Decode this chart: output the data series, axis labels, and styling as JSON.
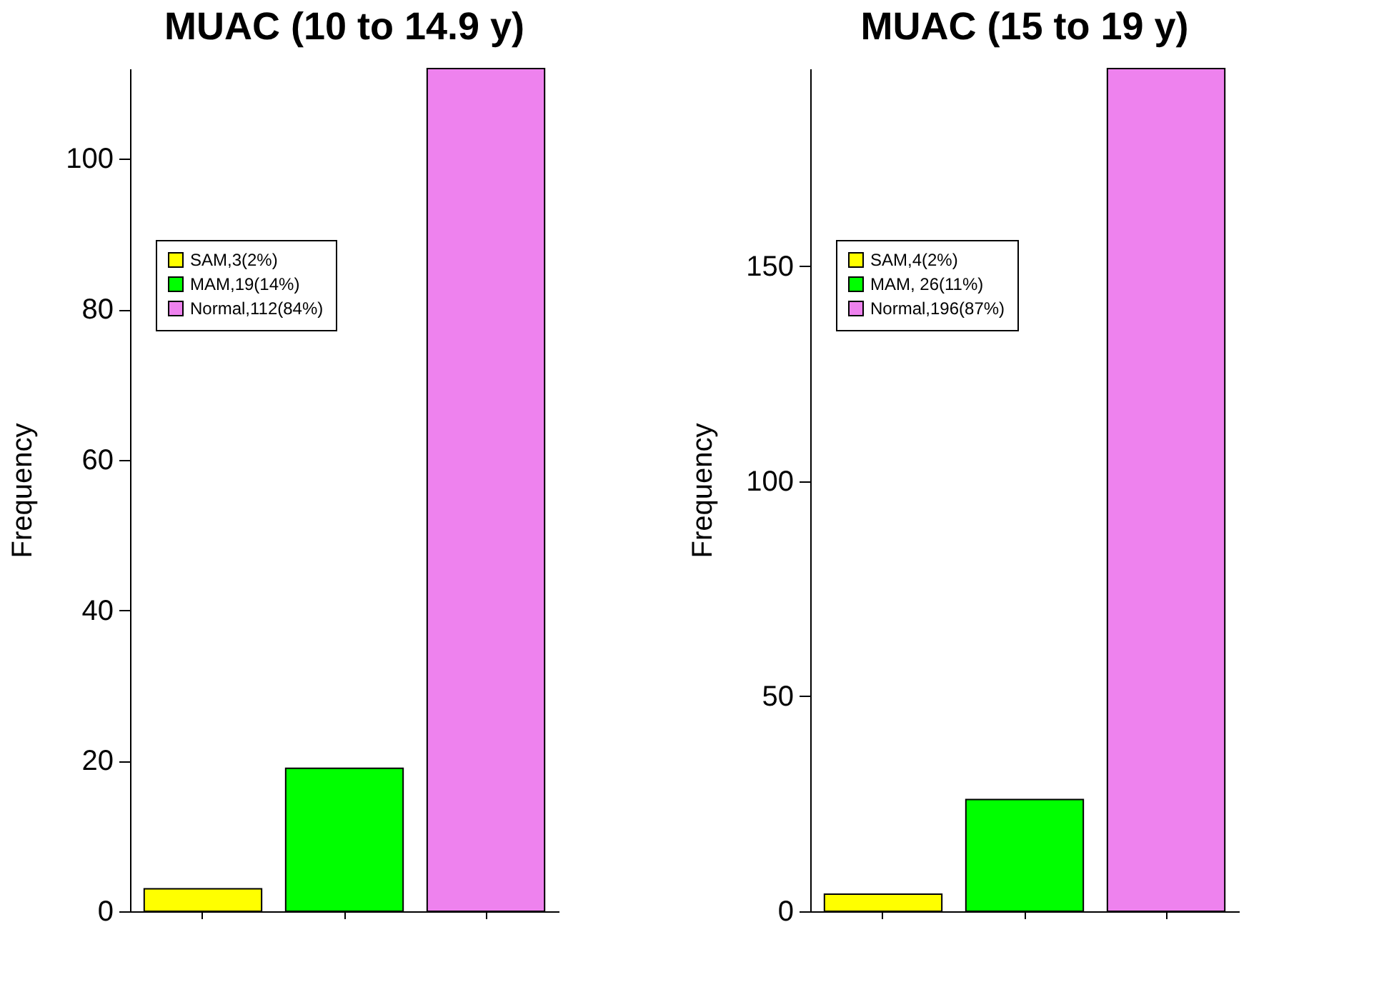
{
  "chart_data": [
    {
      "type": "bar",
      "title": "MUAC (10 to 14.9 y)",
      "ylabel": "Frequency",
      "categories": [
        null,
        null,
        null
      ],
      "stacked": true,
      "legend": "top left",
      "grid": false,
      "ylim": [
        0,
        112
      ],
      "yticks": [
        0,
        20,
        40,
        60,
        80,
        100
      ],
      "series": [
        {
          "name": "SAM,3(2%)",
          "color": "#ffff00",
          "values": [
            3,
            null,
            null
          ]
        },
        {
          "name": "MAM,19(14%)",
          "color": "#00ff00",
          "values": [
            null,
            19,
            null
          ]
        },
        {
          "name": "Normal,112(84%)",
          "color": "#ee82ee",
          "values": [
            null,
            null,
            112
          ]
        }
      ]
    },
    {
      "type": "bar",
      "title": "MUAC (15 to 19 y)",
      "ylabel": "Frequency",
      "categories": [
        null,
        null,
        null
      ],
      "stacked": true,
      "legend": "top left",
      "grid": false,
      "ylim": [
        0,
        196
      ],
      "yticks": [
        0,
        50,
        100,
        150
      ],
      "series": [
        {
          "name": "SAM,4(2%)",
          "color": "#ffff00",
          "values": [
            4,
            null,
            null
          ]
        },
        {
          "name": "MAM, 26(11%)",
          "color": "#00ff00",
          "values": [
            null,
            26,
            null
          ]
        },
        {
          "name": "Normal,196(87%)",
          "color": "#ee82ee",
          "values": [
            null,
            null,
            196
          ]
        }
      ]
    }
  ]
}
